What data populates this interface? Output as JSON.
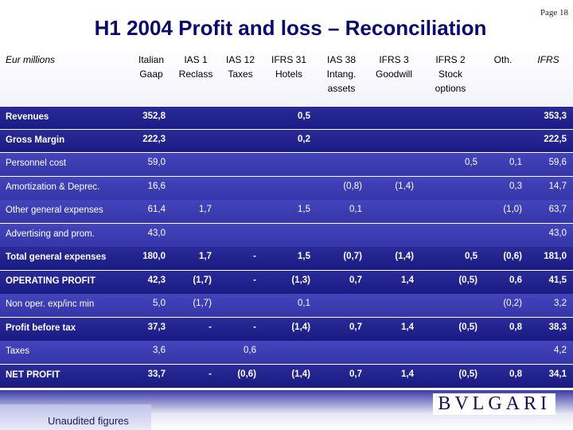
{
  "page_label": "Page 18",
  "title": "H1 2004 Profit and loss – Reconciliation",
  "header": {
    "units": "Eur millions",
    "columns": [
      {
        "l1": "Italian",
        "l2": "Gaap",
        "l3": ""
      },
      {
        "l1": "IAS 1",
        "l2": "Reclass",
        "l3": ""
      },
      {
        "l1": "IAS 12",
        "l2": "Taxes",
        "l3": ""
      },
      {
        "l1": "IFRS 31",
        "l2": "Hotels",
        "l3": ""
      },
      {
        "l1": "IAS 38",
        "l2": "Intang.",
        "l3": "assets"
      },
      {
        "l1": "IFRS 3",
        "l2": "Goodwill",
        "l3": ""
      },
      {
        "l1": "IFRS 2",
        "l2": "Stock",
        "l3": "options"
      },
      {
        "l1": "Oth.",
        "l2": "",
        "l3": ""
      },
      {
        "l1": "IFRS",
        "l2": "",
        "l3": ""
      }
    ]
  },
  "rows": [
    {
      "label": "Revenues",
      "style": "dark",
      "values": [
        "352,8",
        "",
        "",
        "0,5",
        "",
        "",
        "",
        "",
        "353,3"
      ]
    },
    {
      "label": "Gross Margin",
      "style": "dark",
      "values": [
        "222,3",
        "",
        "",
        "0,2",
        "",
        "",
        "",
        "",
        "222,5"
      ]
    },
    {
      "label": "Personnel cost",
      "style": "light",
      "values": [
        "59,0",
        "",
        "",
        "",
        "",
        "",
        "0,5",
        "0,1",
        "59,6"
      ]
    },
    {
      "label": "Amortization & Deprec.",
      "style": "light",
      "values": [
        "16,6",
        "",
        "",
        "",
        "(0,8)",
        "(1,4)",
        "",
        "0,3",
        "14,7"
      ]
    },
    {
      "label": "Other general expenses",
      "style": "light",
      "values": [
        "61,4",
        "1,7",
        "",
        "1,5",
        "0,1",
        "",
        "",
        "(1,0)",
        "63,7"
      ]
    },
    {
      "label": "Advertising and prom.",
      "style": "light",
      "values": [
        "43,0",
        "",
        "",
        "",
        "",
        "",
        "",
        "",
        "43,0"
      ]
    },
    {
      "label": "Total general expenses",
      "style": "dark",
      "values": [
        "180,0",
        "1,7",
        "-",
        "1,5",
        "(0,7)",
        "(1,4)",
        "0,5",
        "(0,6)",
        "181,0"
      ]
    },
    {
      "label": "OPERATING PROFIT",
      "style": "dark",
      "values": [
        "42,3",
        "(1,7)",
        "-",
        "(1,3)",
        "0,7",
        "1,4",
        "(0,5)",
        "0,6",
        "41,5"
      ]
    },
    {
      "label": "Non oper. exp/inc min",
      "style": "light",
      "values": [
        "5,0",
        "(1,7)",
        "",
        "0,1",
        "",
        "",
        "",
        "(0,2)",
        "3,2"
      ]
    },
    {
      "label": "Profit before tax",
      "style": "dark",
      "values": [
        "37,3",
        "-",
        "-",
        "(1,4)",
        "0,7",
        "1,4",
        "(0,5)",
        "0,8",
        "38,3"
      ]
    },
    {
      "label": "Taxes",
      "style": "light",
      "values": [
        "3,6",
        "",
        "0,6",
        "",
        "",
        "",
        "",
        "",
        "4,2"
      ]
    },
    {
      "label": "NET PROFIT",
      "style": "dark",
      "values": [
        "33,7",
        "-",
        "(0,6)",
        "(1,4)",
        "0,7",
        "1,4",
        "(0,5)",
        "0,8",
        "34,1"
      ]
    }
  ],
  "footnote": "Unaudited figures",
  "logo_text": "BVLGARI"
}
